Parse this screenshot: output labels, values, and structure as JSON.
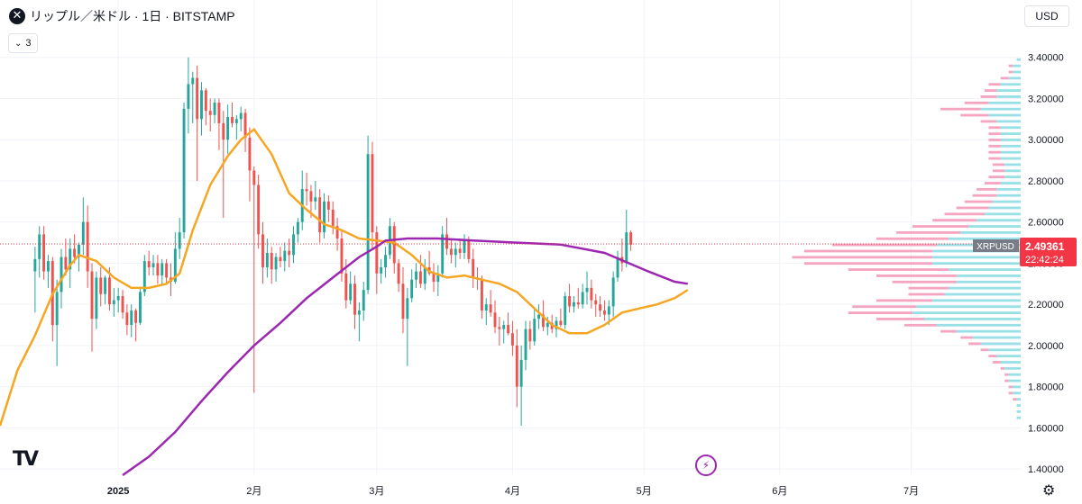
{
  "header": {
    "symbol_icon": "x-icon",
    "symbol_icon_glyph": "✕",
    "title": "リップル／米ドル · 1日 · BITSTAMP",
    "indicator_count": "3"
  },
  "currency_button": "USD",
  "current_price": {
    "symbol": "XRPUSD",
    "price": "2.49361",
    "countdown": "22:42:24",
    "value": 2.49361
  },
  "icons": {
    "logo": "TV",
    "settings_glyph": "⚙",
    "flash_glyph": "⚡"
  },
  "colors": {
    "up": "#26a69a",
    "down": "#ef5350",
    "ma_short": "#f5a623",
    "ma_long": "#9c27b0",
    "vp_up": "#7fd8e0",
    "vp_down": "#f48fb1",
    "price_tag": "#f23645",
    "symbol_tag": "#777c87"
  },
  "chart_data": {
    "type": "candlestick",
    "y_axis_ticks": [
      "3.40000",
      "3.20000",
      "3.00000",
      "2.80000",
      "2.60000",
      "2.40000",
      "2.20000",
      "2.00000",
      "1.80000",
      "1.60000",
      "1.40000"
    ],
    "x_axis_ticks": [
      {
        "label": "2025",
        "day": 19
      },
      {
        "label": "2月",
        "day": 50
      },
      {
        "label": "3月",
        "day": 78
      },
      {
        "label": "4月",
        "day": 109
      },
      {
        "label": "5月",
        "day": 139
      },
      {
        "label": "6月",
        "day": 170
      },
      {
        "label": "7月",
        "day": 200
      }
    ],
    "ylim": [
      1.37,
      3.46
    ],
    "x_range_days": [
      -8,
      225
    ],
    "start_date": "2024-12-06",
    "candles": [
      [
        2.36,
        2.48,
        2.16,
        2.42
      ],
      [
        2.42,
        2.58,
        2.33,
        2.54
      ],
      [
        2.54,
        2.58,
        2.32,
        2.36
      ],
      [
        2.36,
        2.44,
        2.28,
        2.41
      ],
      [
        2.41,
        2.43,
        2.02,
        2.1
      ],
      [
        2.1,
        2.32,
        1.9,
        2.26
      ],
      [
        2.26,
        2.47,
        2.18,
        2.43
      ],
      [
        2.43,
        2.52,
        2.34,
        2.37
      ],
      [
        2.37,
        2.52,
        2.28,
        2.47
      ],
      [
        2.47,
        2.54,
        2.4,
        2.43
      ],
      [
        2.43,
        2.5,
        2.36,
        2.49
      ],
      [
        2.49,
        2.72,
        2.44,
        2.6
      ],
      [
        2.6,
        2.68,
        2.28,
        2.36
      ],
      [
        2.36,
        2.4,
        1.97,
        2.13
      ],
      [
        2.13,
        2.36,
        2.08,
        2.33
      ],
      [
        2.33,
        2.38,
        2.19,
        2.25
      ],
      [
        2.25,
        2.34,
        2.2,
        2.33
      ],
      [
        2.33,
        2.38,
        2.17,
        2.2
      ],
      [
        2.2,
        2.28,
        2.14,
        2.22
      ],
      [
        2.22,
        2.28,
        2.16,
        2.24
      ],
      [
        2.24,
        2.27,
        2.13,
        2.16
      ],
      [
        2.16,
        2.2,
        2.05,
        2.1
      ],
      [
        2.1,
        2.2,
        2.04,
        2.17
      ],
      [
        2.17,
        2.18,
        2.02,
        2.11
      ],
      [
        2.11,
        2.28,
        2.1,
        2.26
      ],
      [
        2.26,
        2.44,
        2.24,
        2.41
      ],
      [
        2.41,
        2.46,
        2.34,
        2.38
      ],
      [
        2.38,
        2.44,
        2.34,
        2.4
      ],
      [
        2.4,
        2.44,
        2.3,
        2.34
      ],
      [
        2.34,
        2.42,
        2.29,
        2.4
      ],
      [
        2.4,
        2.42,
        2.3,
        2.33
      ],
      [
        2.33,
        2.4,
        2.24,
        2.31
      ],
      [
        2.31,
        2.55,
        2.3,
        2.47
      ],
      [
        2.47,
        2.62,
        2.42,
        2.55
      ],
      [
        2.55,
        3.18,
        2.52,
        3.15
      ],
      [
        3.15,
        3.4,
        3.03,
        3.27
      ],
      [
        3.27,
        3.33,
        3.08,
        3.3
      ],
      [
        3.3,
        3.36,
        2.8,
        3.1
      ],
      [
        3.1,
        3.28,
        3.02,
        3.24
      ],
      [
        3.24,
        3.25,
        3.07,
        3.14
      ],
      [
        3.14,
        3.2,
        3.04,
        3.12
      ],
      [
        3.12,
        3.2,
        3.08,
        3.18
      ],
      [
        3.18,
        3.2,
        2.95,
        3.08
      ],
      [
        3.08,
        3.14,
        2.62,
        3.0
      ],
      [
        3.0,
        3.17,
        2.93,
        3.11
      ],
      [
        3.11,
        3.18,
        3.06,
        3.08
      ],
      [
        3.08,
        3.12,
        3.0,
        3.1
      ],
      [
        3.1,
        3.16,
        3.04,
        3.13
      ],
      [
        3.13,
        3.15,
        2.94,
        3.01
      ],
      [
        3.01,
        3.06,
        2.7,
        2.85
      ],
      [
        2.85,
        2.87,
        1.77,
        2.78
      ],
      [
        2.78,
        2.83,
        2.47,
        2.54
      ],
      [
        2.54,
        2.6,
        2.3,
        2.38
      ],
      [
        2.38,
        2.52,
        2.33,
        2.45
      ],
      [
        2.45,
        2.48,
        2.3,
        2.37
      ],
      [
        2.37,
        2.45,
        2.31,
        2.43
      ],
      [
        2.43,
        2.48,
        2.38,
        2.41
      ],
      [
        2.41,
        2.5,
        2.36,
        2.46
      ],
      [
        2.46,
        2.52,
        2.38,
        2.44
      ],
      [
        2.44,
        2.58,
        2.4,
        2.54
      ],
      [
        2.54,
        2.62,
        2.5,
        2.6
      ],
      [
        2.6,
        2.85,
        2.56,
        2.76
      ],
      [
        2.76,
        2.84,
        2.68,
        2.75
      ],
      [
        2.75,
        2.78,
        2.62,
        2.7
      ],
      [
        2.7,
        2.8,
        2.66,
        2.72
      ],
      [
        2.72,
        2.76,
        2.5,
        2.55
      ],
      [
        2.55,
        2.74,
        2.52,
        2.7
      ],
      [
        2.7,
        2.73,
        2.6,
        2.66
      ],
      [
        2.66,
        2.7,
        2.54,
        2.58
      ],
      [
        2.58,
        2.62,
        2.46,
        2.52
      ],
      [
        2.52,
        2.56,
        2.31,
        2.35
      ],
      [
        2.35,
        2.42,
        2.18,
        2.22
      ],
      [
        2.22,
        2.36,
        2.2,
        2.3
      ],
      [
        2.3,
        2.34,
        2.08,
        2.15
      ],
      [
        2.15,
        2.21,
        2.02,
        2.17
      ],
      [
        2.17,
        2.31,
        2.12,
        2.27
      ],
      [
        2.27,
        3.02,
        2.25,
        2.93
      ],
      [
        2.93,
        2.99,
        2.47,
        2.55
      ],
      [
        2.55,
        2.58,
        2.25,
        2.35
      ],
      [
        2.35,
        2.42,
        2.3,
        2.38
      ],
      [
        2.38,
        2.48,
        2.33,
        2.44
      ],
      [
        2.44,
        2.62,
        2.42,
        2.58
      ],
      [
        2.58,
        2.6,
        2.35,
        2.4
      ],
      [
        2.4,
        2.42,
        2.26,
        2.3
      ],
      [
        2.3,
        2.38,
        2.06,
        2.13
      ],
      [
        2.13,
        2.28,
        1.9,
        2.23
      ],
      [
        2.23,
        2.37,
        2.21,
        2.32
      ],
      [
        2.32,
        2.4,
        2.28,
        2.36
      ],
      [
        2.36,
        2.44,
        2.28,
        2.3
      ],
      [
        2.3,
        2.42,
        2.27,
        2.38
      ],
      [
        2.38,
        2.46,
        2.34,
        2.35
      ],
      [
        2.35,
        2.4,
        2.26,
        2.31
      ],
      [
        2.31,
        2.39,
        2.24,
        2.35
      ],
      [
        2.35,
        2.58,
        2.33,
        2.54
      ],
      [
        2.54,
        2.62,
        2.44,
        2.47
      ],
      [
        2.47,
        2.52,
        2.4,
        2.44
      ],
      [
        2.44,
        2.5,
        2.38,
        2.47
      ],
      [
        2.47,
        2.52,
        2.42,
        2.45
      ],
      [
        2.45,
        2.54,
        2.42,
        2.51
      ],
      [
        2.51,
        2.53,
        2.4,
        2.42
      ],
      [
        2.42,
        2.47,
        2.28,
        2.33
      ],
      [
        2.33,
        2.38,
        2.27,
        2.32
      ],
      [
        2.32,
        2.34,
        2.13,
        2.17
      ],
      [
        2.17,
        2.23,
        2.1,
        2.2
      ],
      [
        2.2,
        2.27,
        2.14,
        2.16
      ],
      [
        2.16,
        2.22,
        2.06,
        2.09
      ],
      [
        2.09,
        2.14,
        2.0,
        2.08
      ],
      [
        2.08,
        2.12,
        2.01,
        2.1
      ],
      [
        2.1,
        2.16,
        2.05,
        2.06
      ],
      [
        2.06,
        2.12,
        1.95,
        2.0
      ],
      [
        2.0,
        2.08,
        1.7,
        1.8
      ],
      [
        1.8,
        2.0,
        1.61,
        1.93
      ],
      [
        1.93,
        2.12,
        1.88,
        2.08
      ],
      [
        2.08,
        2.12,
        1.98,
        2.02
      ],
      [
        2.02,
        2.18,
        2.0,
        2.13
      ],
      [
        2.13,
        2.2,
        2.08,
        2.15
      ],
      [
        2.15,
        2.22,
        2.07,
        2.09
      ],
      [
        2.09,
        2.14,
        2.05,
        2.11
      ],
      [
        2.11,
        2.15,
        2.06,
        2.08
      ],
      [
        2.08,
        2.14,
        2.04,
        2.12
      ],
      [
        2.12,
        2.18,
        2.09,
        2.1
      ],
      [
        2.1,
        2.26,
        2.08,
        2.24
      ],
      [
        2.24,
        2.3,
        2.16,
        2.19
      ],
      [
        2.19,
        2.24,
        2.16,
        2.21
      ],
      [
        2.21,
        2.28,
        2.18,
        2.2
      ],
      [
        2.2,
        2.3,
        2.18,
        2.26
      ],
      [
        2.26,
        2.36,
        2.2,
        2.28
      ],
      [
        2.28,
        2.32,
        2.18,
        2.22
      ],
      [
        2.22,
        2.25,
        2.14,
        2.2
      ],
      [
        2.2,
        2.24,
        2.14,
        2.17
      ],
      [
        2.17,
        2.22,
        2.12,
        2.15
      ],
      [
        2.15,
        2.22,
        2.1,
        2.19
      ],
      [
        2.19,
        2.36,
        2.14,
        2.33
      ],
      [
        2.33,
        2.46,
        2.31,
        2.43
      ],
      [
        2.43,
        2.52,
        2.36,
        2.4
      ],
      [
        2.4,
        2.66,
        2.38,
        2.55
      ],
      [
        2.55,
        2.56,
        2.46,
        2.49
      ]
    ],
    "ma_short": [
      [
        -8,
        1.61
      ],
      [
        -4,
        1.88
      ],
      [
        0,
        2.05
      ],
      [
        4,
        2.25
      ],
      [
        8,
        2.39
      ],
      [
        10,
        2.44
      ],
      [
        14,
        2.41
      ],
      [
        18,
        2.33
      ],
      [
        22,
        2.28
      ],
      [
        26,
        2.28
      ],
      [
        30,
        2.3
      ],
      [
        33,
        2.35
      ],
      [
        36,
        2.56
      ],
      [
        40,
        2.78
      ],
      [
        44,
        2.92
      ],
      [
        47,
        3.0
      ],
      [
        50,
        3.05
      ],
      [
        54,
        2.93
      ],
      [
        58,
        2.74
      ],
      [
        62,
        2.66
      ],
      [
        66,
        2.59
      ],
      [
        70,
        2.56
      ],
      [
        74,
        2.52
      ],
      [
        78,
        2.51
      ],
      [
        82,
        2.5
      ],
      [
        86,
        2.44
      ],
      [
        90,
        2.36
      ],
      [
        94,
        2.33
      ],
      [
        98,
        2.34
      ],
      [
        102,
        2.32
      ],
      [
        106,
        2.3
      ],
      [
        110,
        2.26
      ],
      [
        114,
        2.18
      ],
      [
        118,
        2.1
      ],
      [
        122,
        2.06
      ],
      [
        126,
        2.06
      ],
      [
        130,
        2.1
      ],
      [
        134,
        2.16
      ],
      [
        138,
        2.18
      ],
      [
        142,
        2.2
      ],
      [
        146,
        2.23
      ],
      [
        149,
        2.27
      ]
    ],
    "ma_long": [
      [
        20,
        1.37
      ],
      [
        26,
        1.46
      ],
      [
        32,
        1.58
      ],
      [
        38,
        1.73
      ],
      [
        44,
        1.87
      ],
      [
        50,
        2.0
      ],
      [
        56,
        2.11
      ],
      [
        62,
        2.23
      ],
      [
        68,
        2.33
      ],
      [
        74,
        2.43
      ],
      [
        78,
        2.48
      ],
      [
        80,
        2.51
      ],
      [
        85,
        2.52
      ],
      [
        92,
        2.52
      ],
      [
        100,
        2.51
      ],
      [
        110,
        2.5
      ],
      [
        120,
        2.49
      ],
      [
        130,
        2.45
      ],
      [
        140,
        2.36
      ],
      [
        146,
        2.31
      ],
      [
        149,
        2.3
      ]
    ],
    "volume_profile": {
      "price_step": 0.015,
      "max_bar_width_ratio": 0.25,
      "levels": [
        [
          3.38,
          0.01,
          0.0
        ],
        [
          3.35,
          0.02,
          0.01
        ],
        [
          3.32,
          0.02,
          0.01
        ],
        [
          3.29,
          0.03,
          0.02
        ],
        [
          3.26,
          0.05,
          0.03
        ],
        [
          3.23,
          0.06,
          0.03
        ],
        [
          3.2,
          0.06,
          0.04
        ],
        [
          3.17,
          0.08,
          0.06
        ],
        [
          3.14,
          0.1,
          0.1
        ],
        [
          3.11,
          0.08,
          0.07
        ],
        [
          3.08,
          0.06,
          0.04
        ],
        [
          3.05,
          0.05,
          0.03
        ],
        [
          3.02,
          0.05,
          0.03
        ],
        [
          2.99,
          0.05,
          0.03
        ],
        [
          2.96,
          0.05,
          0.03
        ],
        [
          2.93,
          0.05,
          0.03
        ],
        [
          2.9,
          0.05,
          0.03
        ],
        [
          2.87,
          0.04,
          0.03
        ],
        [
          2.84,
          0.04,
          0.03
        ],
        [
          2.81,
          0.04,
          0.04
        ],
        [
          2.78,
          0.05,
          0.04
        ],
        [
          2.75,
          0.06,
          0.05
        ],
        [
          2.72,
          0.06,
          0.06
        ],
        [
          2.69,
          0.07,
          0.07
        ],
        [
          2.66,
          0.08,
          0.08
        ],
        [
          2.63,
          0.09,
          0.1
        ],
        [
          2.6,
          0.11,
          0.11
        ],
        [
          2.57,
          0.13,
          0.14
        ],
        [
          2.54,
          0.15,
          0.16
        ],
        [
          2.51,
          0.18,
          0.18
        ],
        [
          2.48,
          0.21,
          0.26
        ],
        [
          2.45,
          0.22,
          0.32
        ],
        [
          2.42,
          0.22,
          0.35
        ],
        [
          2.39,
          0.22,
          0.32
        ],
        [
          2.36,
          0.18,
          0.25
        ],
        [
          2.33,
          0.16,
          0.2
        ],
        [
          2.3,
          0.16,
          0.16
        ],
        [
          2.27,
          0.18,
          0.1
        ],
        [
          2.24,
          0.19,
          0.09
        ],
        [
          2.21,
          0.22,
          0.14
        ],
        [
          2.18,
          0.26,
          0.16
        ],
        [
          2.15,
          0.27,
          0.16
        ],
        [
          2.12,
          0.24,
          0.12
        ],
        [
          2.09,
          0.21,
          0.08
        ],
        [
          2.06,
          0.16,
          0.04
        ],
        [
          2.03,
          0.12,
          0.03
        ],
        [
          2.0,
          0.1,
          0.03
        ],
        [
          1.97,
          0.08,
          0.02
        ],
        [
          1.94,
          0.06,
          0.02
        ],
        [
          1.91,
          0.05,
          0.02
        ],
        [
          1.88,
          0.04,
          0.01
        ],
        [
          1.85,
          0.03,
          0.01
        ],
        [
          1.82,
          0.03,
          0.01
        ],
        [
          1.79,
          0.02,
          0.01
        ],
        [
          1.76,
          0.02,
          0.01
        ],
        [
          1.73,
          0.01,
          0.01
        ],
        [
          1.7,
          0.01,
          0.0
        ],
        [
          1.67,
          0.01,
          0.0
        ],
        [
          1.64,
          0.01,
          0.0
        ]
      ]
    },
    "grid": true
  }
}
